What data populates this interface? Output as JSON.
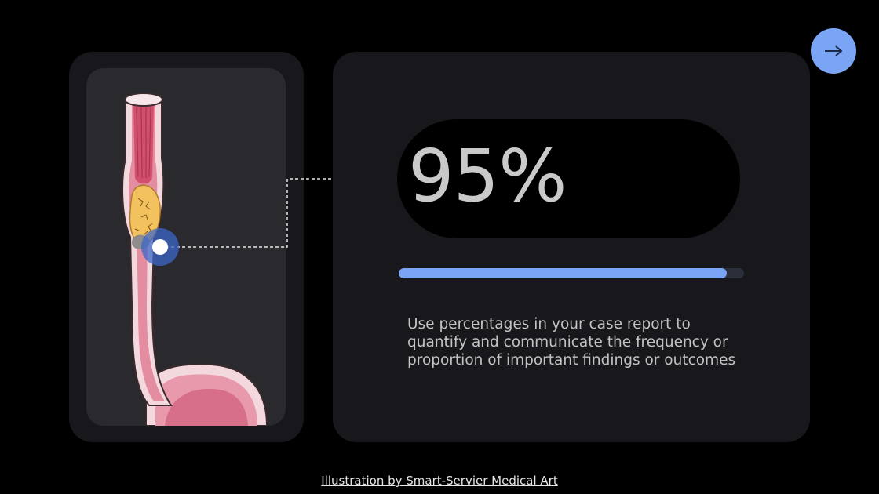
{
  "stat": {
    "value": "95%",
    "progress": 0.95
  },
  "description": "Use percentages in your case report to quantify and communicate the frequency or proportion of important findings or outcomes",
  "credit": {
    "text": "Illustration by Smart-Servier Medical Art"
  },
  "navigation": {
    "next_icon": "arrow-right-icon",
    "next_glyph": "→"
  },
  "illustration": {
    "subject": "esophagus-illustration",
    "marker": "highlight-marker"
  },
  "colors": {
    "accent": "#7aa5f5",
    "background": "#000000",
    "card": "#18181c",
    "inner_card": "#2a2a2e",
    "marker": "#3e67c9"
  }
}
